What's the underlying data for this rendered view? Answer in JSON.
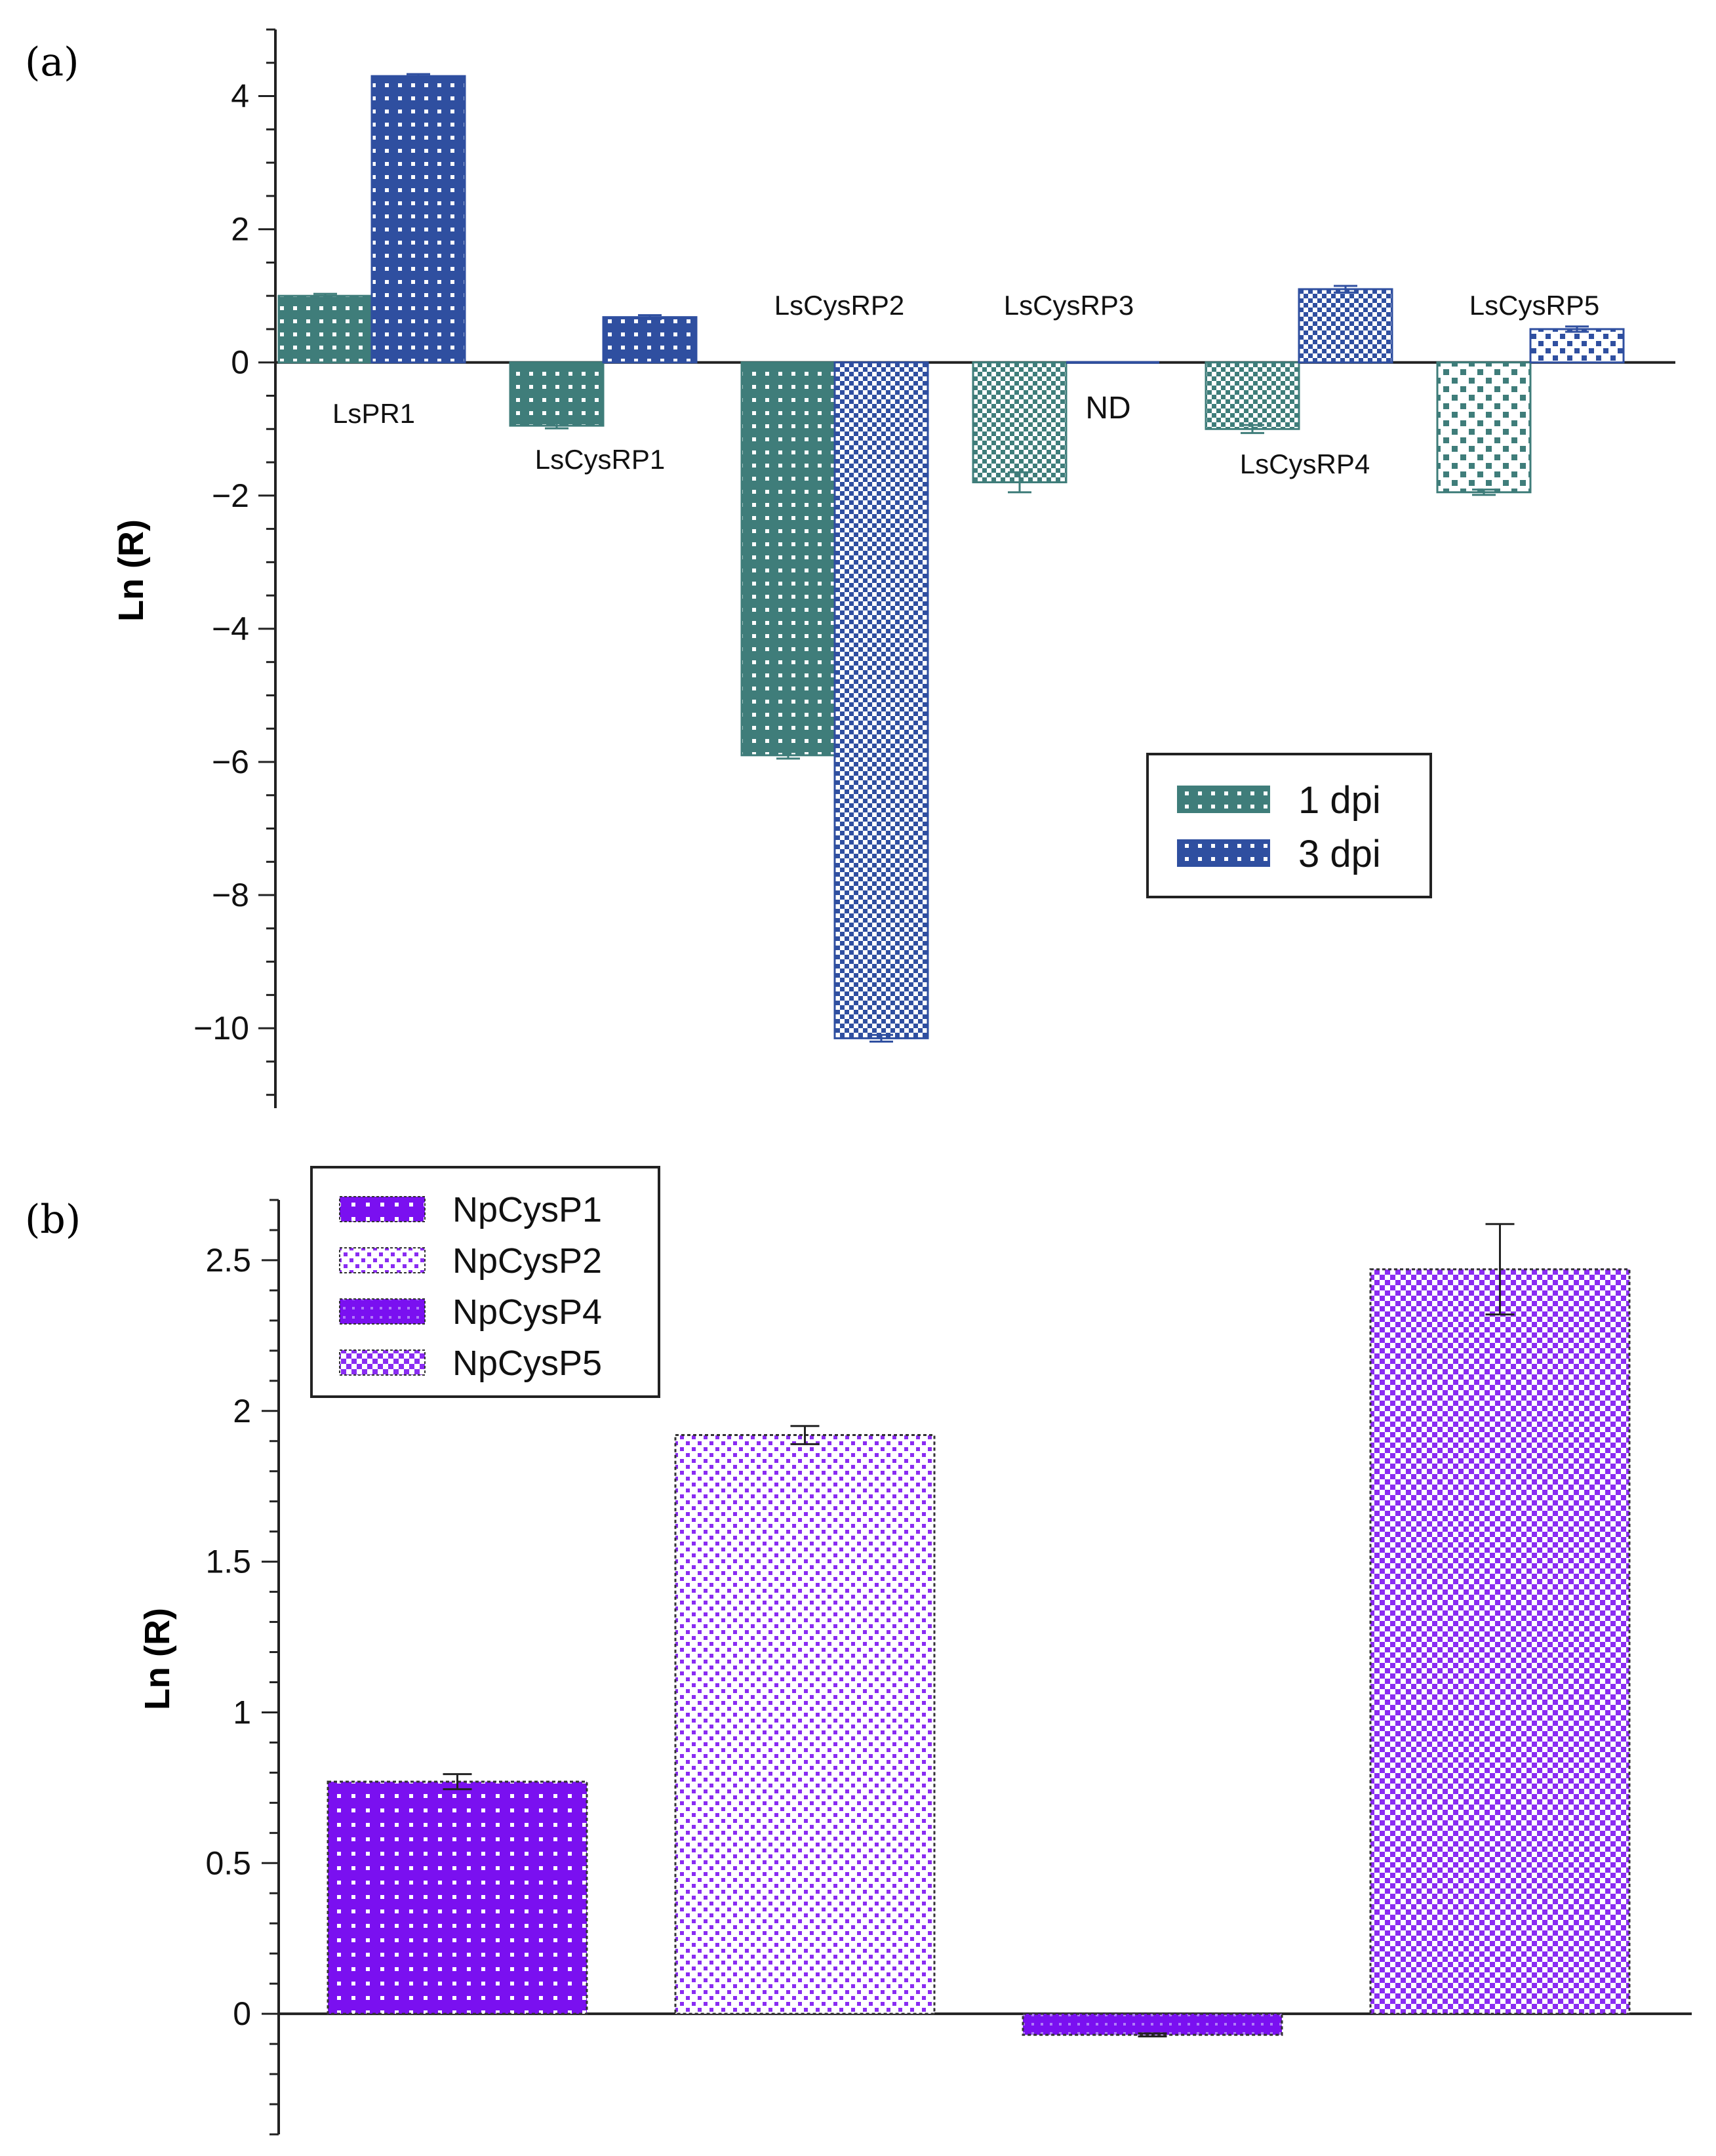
{
  "chart_data": [
    {
      "panel": "(a)",
      "type": "bar",
      "ylabel": "Ln (R)",
      "ylim": [
        -11.2,
        5
      ],
      "yticks": [
        -10,
        -8,
        -6,
        -4,
        -2,
        0,
        2,
        4
      ],
      "ytick_labels": [
        "−10",
        "−8",
        "−6",
        "−4",
        "−2",
        "0",
        "2",
        "4"
      ],
      "categories": [
        "LsPR1",
        "LsCysRP1",
        "LsCysRP2",
        "LsCysRP3",
        "LsCysRP4",
        "LsCysRP5"
      ],
      "series": [
        {
          "name": "1 dpi",
          "color": "#3f7d7a",
          "values": [
            1.0,
            -0.95,
            -5.9,
            -1.8,
            -1.0,
            -1.95
          ],
          "errors": [
            0.03,
            0.04,
            0.05,
            0.15,
            0.06,
            0.04
          ]
        },
        {
          "name": "3 dpi",
          "color": "#2f4fa0",
          "values": [
            4.3,
            0.68,
            -10.15,
            0.0,
            1.1,
            0.5
          ],
          "errors": [
            0.03,
            0.03,
            0.05,
            0.0,
            0.05,
            0.04
          ]
        }
      ],
      "annotations": [
        {
          "text": "ND",
          "category": "LsCysRP3",
          "series": "3 dpi"
        }
      ],
      "legend": {
        "entries": [
          "1 dpi",
          "3 dpi"
        ],
        "position": "center-right"
      }
    },
    {
      "panel": "(b)",
      "type": "bar",
      "ylabel": "Ln (R)",
      "ylim": [
        -0.4,
        2.7
      ],
      "yticks": [
        0,
        0.5,
        1,
        1.5,
        2,
        2.5
      ],
      "ytick_labels": [
        "0",
        "0.5",
        "1",
        "1.5",
        "2",
        "2.5"
      ],
      "categories": [
        "NpCysP1",
        "NpCysP2",
        "NpCysP4",
        "NpCysP5"
      ],
      "series": [
        {
          "name": "Ln (R)",
          "color": "#7a10f0",
          "values": [
            0.77,
            1.92,
            -0.07,
            2.47
          ],
          "errors": [
            0.025,
            0.03,
            0.005,
            0.15
          ]
        }
      ],
      "legend": {
        "entries": [
          "NpCysP1",
          "NpCysP2",
          "NpCysP4",
          "NpCysP5"
        ],
        "position": "top-left"
      }
    }
  ]
}
